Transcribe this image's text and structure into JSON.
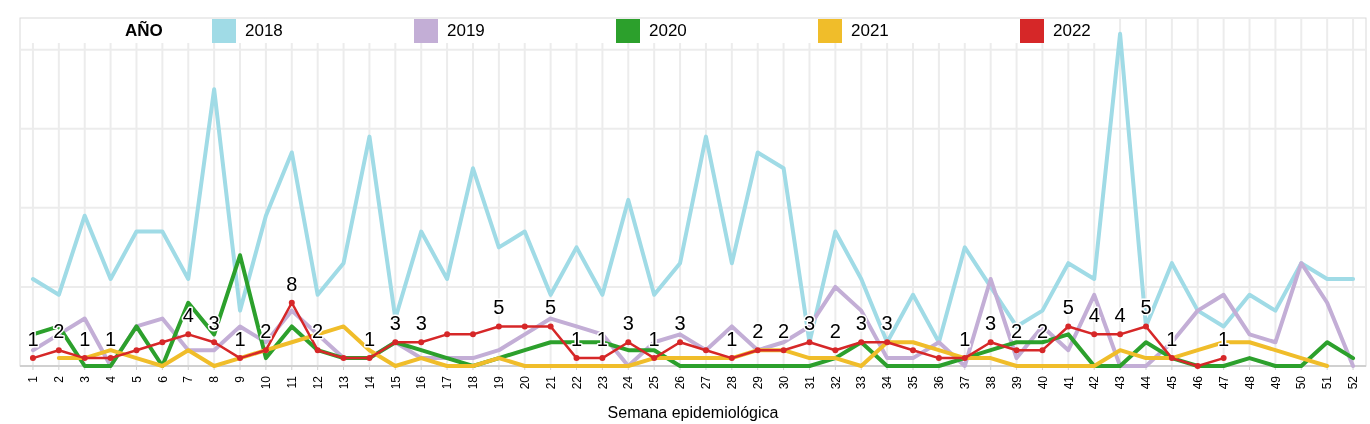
{
  "chart_data": {
    "type": "line",
    "xlabel": "Semana epidemiológica",
    "legend_title": "AÑO",
    "legend": "top",
    "grid": true,
    "ylim": [
      0,
      44
    ],
    "yticks": [
      {
        "value": 0,
        "label": null
      },
      {
        "value": 10,
        "label": null
      },
      {
        "value": 20,
        "label": null
      },
      {
        "value": 30,
        "label": null
      },
      {
        "value": 40,
        "label": null
      }
    ],
    "categories": [
      "1",
      "2",
      "3",
      "4",
      "5",
      "6",
      "7",
      "8",
      "9",
      "10",
      "11",
      "12",
      "13",
      "14",
      "15",
      "16",
      "17",
      "18",
      "19",
      "20",
      "21",
      "22",
      "23",
      "24",
      "25",
      "26",
      "27",
      "28",
      "29",
      "30",
      "31",
      "32",
      "33",
      "34",
      "35",
      "36",
      "37",
      "38",
      "39",
      "40",
      "41",
      "42",
      "43",
      "44",
      "45",
      "46",
      "47",
      "48",
      "49",
      "50",
      "51",
      "52"
    ],
    "series": [
      {
        "name": "2018",
        "color": "#a0dbe6",
        "values": [
          11,
          9,
          19,
          11,
          17,
          17,
          11,
          35,
          7,
          19,
          27,
          9,
          13,
          29,
          6,
          17,
          11,
          25,
          15,
          17,
          9,
          15,
          9,
          21,
          9,
          13,
          29,
          13,
          27,
          25,
          3,
          17,
          11,
          3,
          9,
          3,
          15,
          10,
          5,
          7,
          13,
          11,
          42,
          5,
          13,
          7,
          5,
          9,
          7,
          13,
          11,
          11
        ]
      },
      {
        "name": "2019",
        "color": "#c3aed6",
        "values": [
          2,
          4,
          6,
          0,
          5,
          6,
          2,
          2,
          5,
          3,
          7,
          4,
          1,
          1,
          3,
          1,
          1,
          1,
          2,
          4,
          6,
          5,
          4,
          0,
          3,
          4,
          2,
          5,
          2,
          3,
          5,
          10,
          7,
          1,
          1,
          3,
          0,
          11,
          1,
          5,
          2,
          9,
          0,
          0,
          3,
          7,
          9,
          4,
          3,
          13,
          8,
          0
        ]
      },
      {
        "name": "2020",
        "color": "#2ca02c",
        "values": [
          4,
          5,
          0,
          0,
          5,
          0,
          8,
          4,
          14,
          1,
          5,
          2,
          1,
          1,
          3,
          2,
          1,
          0,
          1,
          2,
          3,
          3,
          3,
          2,
          2,
          0,
          0,
          0,
          0,
          0,
          0,
          1,
          3,
          0,
          0,
          0,
          1,
          2,
          3,
          3,
          4,
          0,
          0,
          3,
          1,
          0,
          0,
          1,
          0,
          0,
          3,
          1
        ]
      },
      {
        "name": "2021",
        "color": "#f0bd2a",
        "values": [
          null,
          1,
          1,
          2,
          1,
          0,
          2,
          0,
          1,
          2,
          3,
          4,
          5,
          2,
          0,
          1,
          0,
          0,
          1,
          0,
          0,
          0,
          0,
          0,
          1,
          1,
          1,
          1,
          2,
          2,
          1,
          1,
          0,
          3,
          3,
          2,
          1,
          1,
          0,
          0,
          0,
          0,
          2,
          1,
          1,
          2,
          3,
          3,
          2,
          1,
          0,
          null
        ]
      },
      {
        "name": "2022",
        "color": "#d62728",
        "marker": "circle",
        "values": [
          1,
          2,
          1,
          1,
          2,
          3,
          4,
          3,
          1,
          2,
          8,
          2,
          1,
          1,
          3,
          3,
          4,
          4,
          5,
          5,
          5,
          1,
          1,
          3,
          1,
          3,
          2,
          1,
          2,
          2,
          3,
          2,
          3,
          3,
          2,
          1,
          1,
          3,
          2,
          2,
          5,
          4,
          4,
          5,
          1,
          0,
          1,
          null,
          null,
          null,
          null,
          null
        ],
        "value_labels": [
          "1",
          "2",
          "1",
          "1",
          null,
          null,
          "4",
          "3",
          "1",
          "2",
          "8",
          "2",
          null,
          "1",
          "3",
          "3",
          null,
          null,
          "5",
          null,
          "5",
          "1",
          "1",
          "3",
          "1",
          "3",
          null,
          "1",
          "2",
          "2",
          "3",
          "2",
          "3",
          "3",
          null,
          null,
          "1",
          "3",
          "2",
          "2",
          "5",
          "4",
          "4",
          "5",
          "1",
          null,
          "1",
          null,
          null,
          null,
          null,
          null
        ]
      }
    ]
  }
}
